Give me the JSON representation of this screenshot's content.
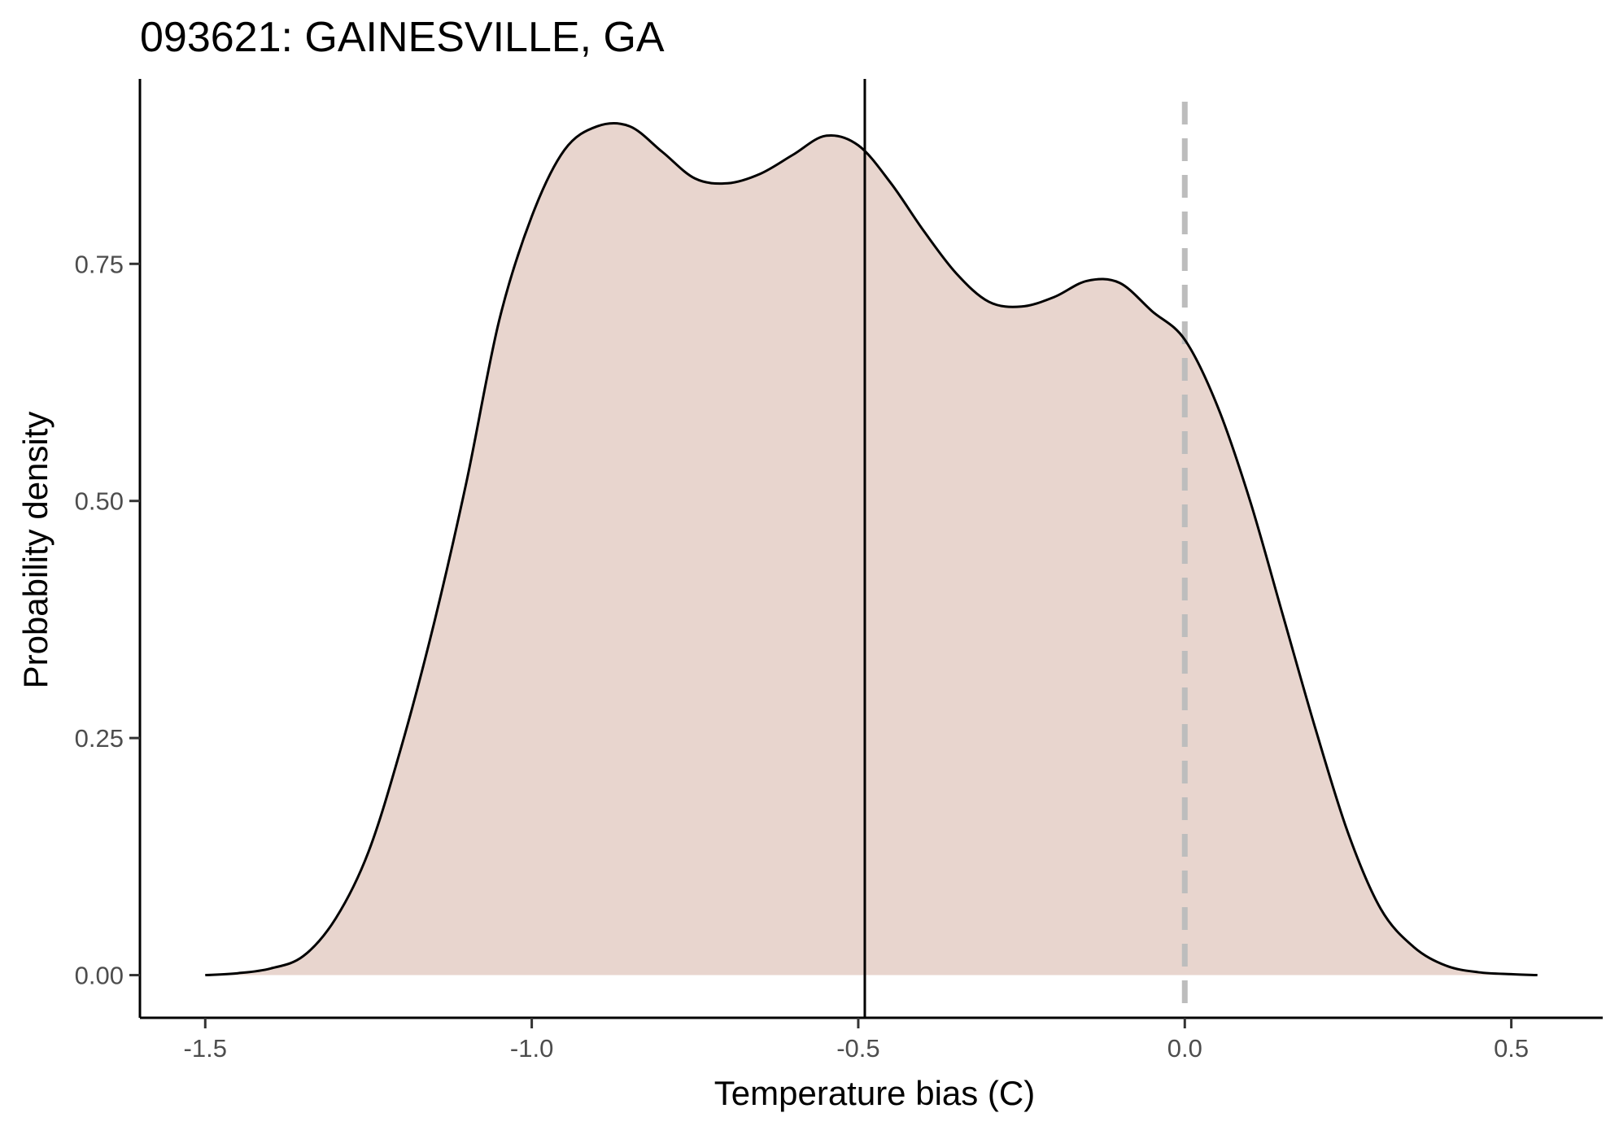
{
  "chart_data": {
    "type": "area",
    "title": "093621: GAINESVILLE, GA",
    "xlabel": "Temperature bias (C)",
    "ylabel": "Probability density",
    "xlim": [
      -1.6,
      0.64
    ],
    "ylim": [
      -0.045,
      0.945
    ],
    "x_ticks": [
      -1.5,
      -1.0,
      -0.5,
      0.0,
      0.5
    ],
    "x_tick_labels": [
      "-1.5",
      "-1.0",
      "-0.5",
      "0.0",
      "0.5"
    ],
    "y_ticks": [
      0.0,
      0.25,
      0.5,
      0.75
    ],
    "y_tick_labels": [
      "0.00",
      "0.25",
      "0.50",
      "0.75"
    ],
    "grid": false,
    "legend": "none",
    "fill_color": "#e8d5ce",
    "line_color": "#000000",
    "mean_line": {
      "x": -0.49,
      "color": "#000000",
      "style": "solid"
    },
    "reference_line": {
      "x": 0.0,
      "color": "#bdbdbd",
      "style": "dashed"
    },
    "series": [
      {
        "x": [
          -1.5,
          -1.45,
          -1.4,
          -1.35,
          -1.3,
          -1.25,
          -1.2,
          -1.15,
          -1.1,
          -1.05,
          -1.0,
          -0.95,
          -0.9,
          -0.85,
          -0.8,
          -0.75,
          -0.7,
          -0.65,
          -0.6,
          -0.55,
          -0.5,
          -0.45,
          -0.4,
          -0.35,
          -0.3,
          -0.25,
          -0.2,
          -0.15,
          -0.1,
          -0.05,
          0.0,
          0.05,
          0.1,
          0.15,
          0.2,
          0.25,
          0.3,
          0.35,
          0.4,
          0.45,
          0.5,
          0.54
        ],
        "y": [
          0.0,
          0.002,
          0.007,
          0.02,
          0.06,
          0.13,
          0.24,
          0.37,
          0.52,
          0.69,
          0.8,
          0.87,
          0.895,
          0.895,
          0.868,
          0.84,
          0.835,
          0.845,
          0.865,
          0.885,
          0.875,
          0.835,
          0.785,
          0.74,
          0.71,
          0.705,
          0.715,
          0.732,
          0.73,
          0.7,
          0.67,
          0.6,
          0.5,
          0.38,
          0.26,
          0.15,
          0.07,
          0.03,
          0.01,
          0.003,
          0.001,
          0.0
        ]
      }
    ]
  }
}
